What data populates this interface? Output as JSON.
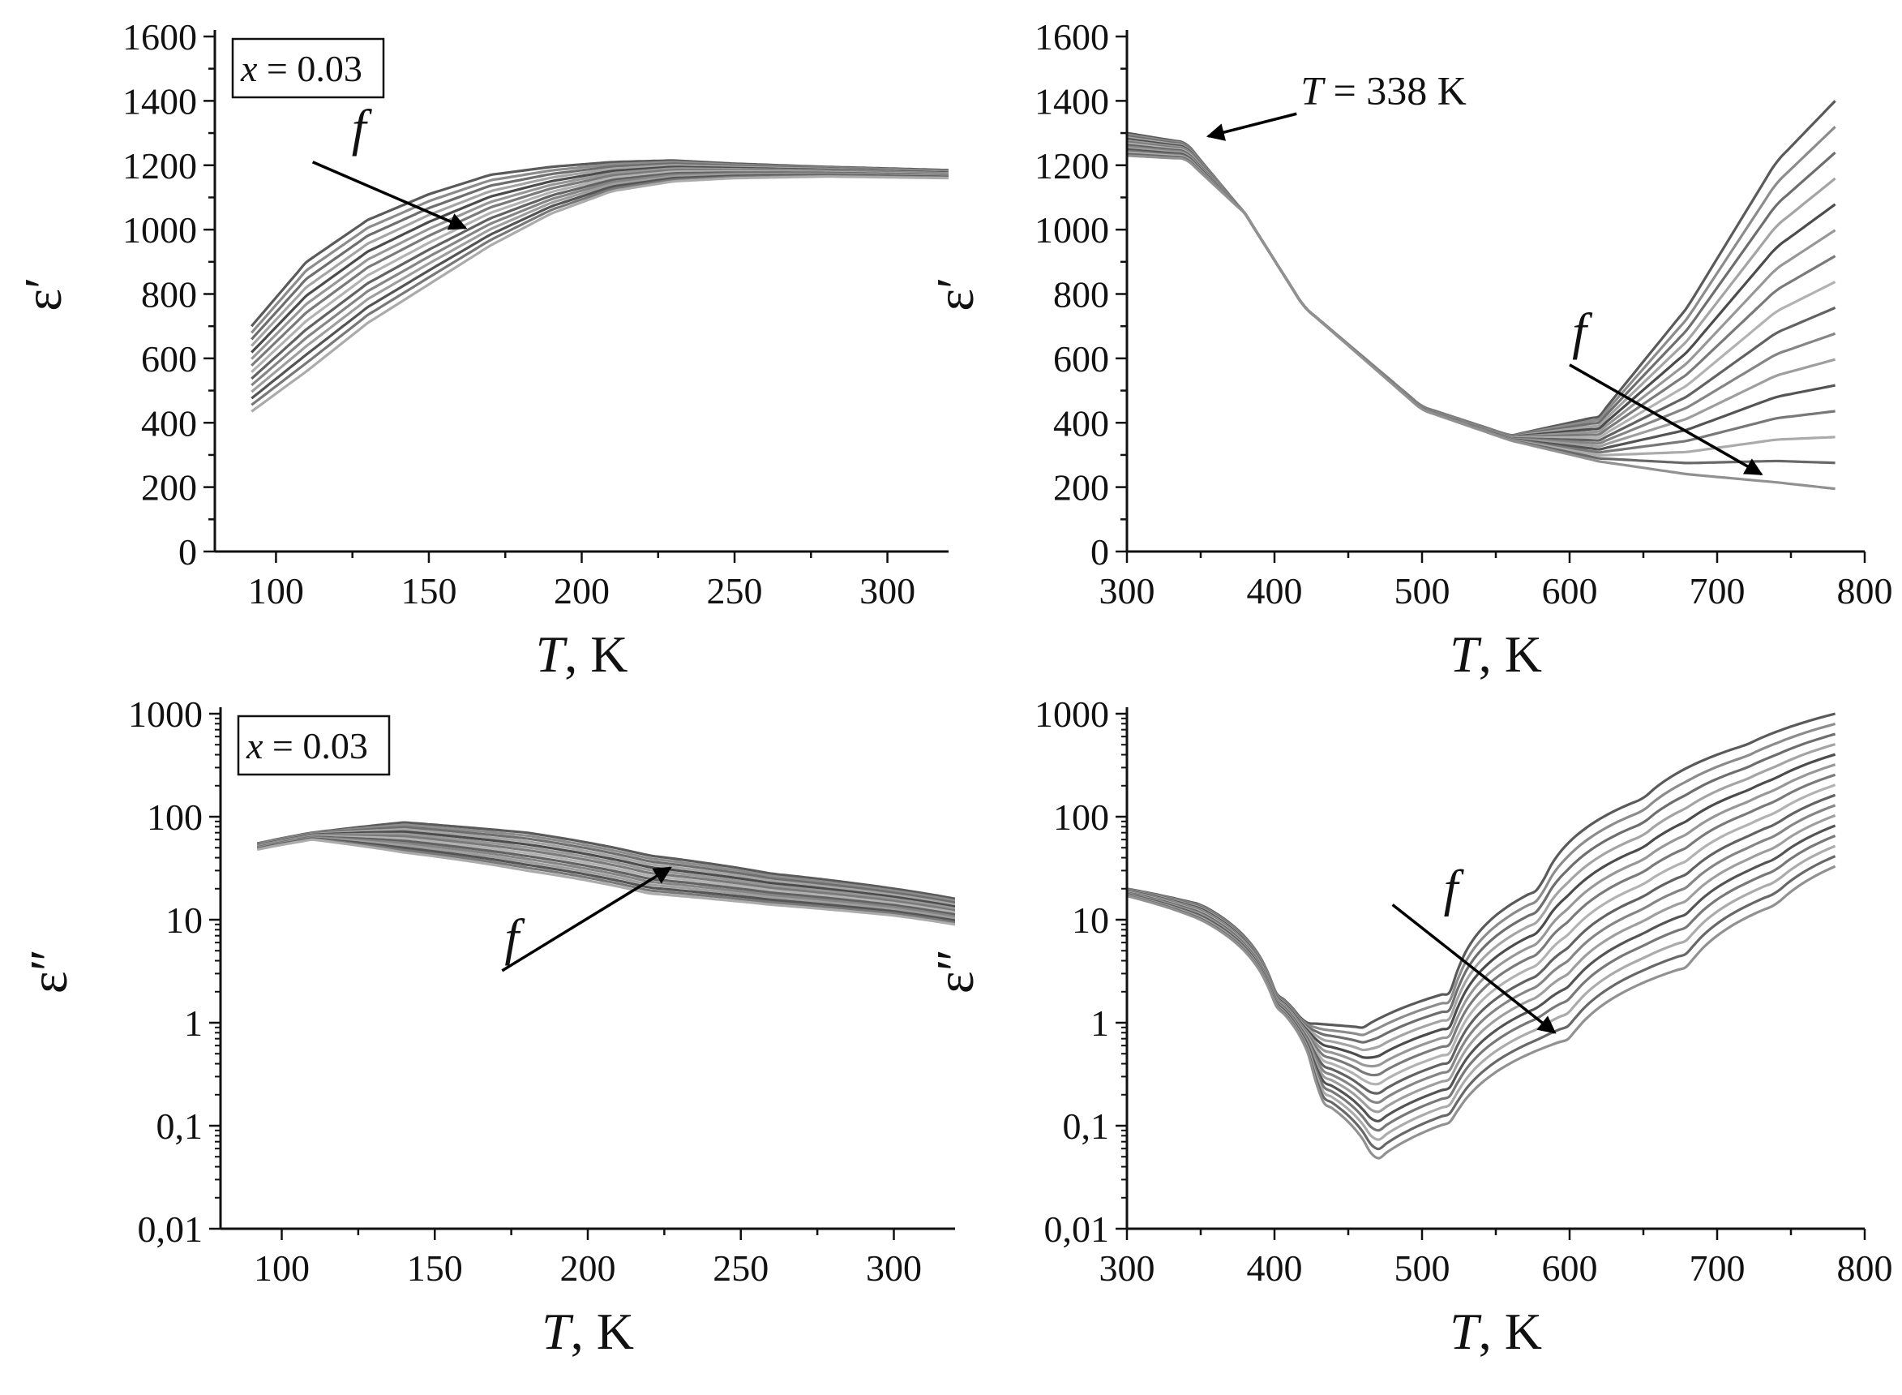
{
  "chart_data": [
    {
      "type": "line",
      "panel": "top-left",
      "title": "",
      "xlabel": "T, K",
      "ylabel": "ε′",
      "xlim": [
        80,
        320
      ],
      "ylim": [
        0,
        1600
      ],
      "xscale": "linear",
      "yscale": "linear",
      "xticks": [
        100,
        150,
        200,
        250,
        300
      ],
      "xtick_labels": [
        "100",
        "150",
        "200",
        "250",
        "300"
      ],
      "yticks": [
        0,
        200,
        400,
        600,
        800,
        1000,
        1200,
        1400,
        1600
      ],
      "ytick_labels": [
        "0",
        "200",
        "400",
        "600",
        "800",
        "1000",
        "1200",
        "1400",
        "1600"
      ],
      "legend_box": {
        "var": "x",
        "rest": " = 0.03",
        "placement": "top-left"
      },
      "annotation": {
        "text": "f",
        "from": [
          112,
          1210
        ],
        "to": [
          162,
          1005
        ]
      },
      "curve_count": 14,
      "series_summary": [
        {
          "name": "lowest frequency",
          "x": [
            92,
            110,
            130,
            150,
            170,
            190,
            210,
            230,
            250,
            280,
            320
          ],
          "y": [
            700,
            900,
            1030,
            1110,
            1170,
            1195,
            1210,
            1215,
            1205,
            1195,
            1185
          ]
        },
        {
          "name": "highest frequency",
          "x": [
            92,
            110,
            130,
            150,
            170,
            190,
            210,
            230,
            250,
            280,
            320
          ],
          "y": [
            435,
            560,
            710,
            830,
            950,
            1050,
            1120,
            1150,
            1160,
            1165,
            1160
          ]
        }
      ]
    },
    {
      "type": "line",
      "panel": "top-right",
      "title": "",
      "xlabel": "T, K",
      "ylabel": "ε′",
      "xlim": [
        300,
        800
      ],
      "ylim": [
        0,
        1600
      ],
      "xscale": "linear",
      "yscale": "linear",
      "xticks": [
        300,
        400,
        500,
        600,
        700,
        800
      ],
      "xtick_labels": [
        "300",
        "400",
        "500",
        "600",
        "700",
        "800"
      ],
      "yticks": [
        0,
        200,
        400,
        600,
        800,
        1000,
        1200,
        1400,
        1600
      ],
      "ytick_labels": [
        "0",
        "200",
        "400",
        "600",
        "800",
        "1000",
        "1200",
        "1400",
        "1600"
      ],
      "annotations": [
        {
          "text_var": "T",
          "text_rest": " = 338 K",
          "from": [
            415,
            1360
          ],
          "to": [
            355,
            1290
          ]
        },
        {
          "text": "f",
          "from": [
            600,
            580
          ],
          "to": [
            730,
            240
          ]
        }
      ],
      "curve_count": 16,
      "series_summary": [
        {
          "name": "lowest frequency",
          "x": [
            300,
            340,
            380,
            420,
            500,
            560,
            620,
            680,
            740,
            780
          ],
          "y": [
            1300,
            1270,
            1050,
            760,
            450,
            360,
            420,
            760,
            1210,
            1400
          ]
        },
        {
          "name": "highest frequency",
          "x": [
            300,
            340,
            380,
            420,
            500,
            560,
            620,
            680,
            740,
            780
          ],
          "y": [
            1230,
            1220,
            1050,
            760,
            440,
            345,
            280,
            240,
            215,
            195
          ]
        }
      ]
    },
    {
      "type": "line",
      "panel": "bottom-left",
      "title": "",
      "xlabel": "T, K",
      "ylabel": "ε″",
      "xlim": [
        80,
        320
      ],
      "ylim": [
        0.01,
        1000
      ],
      "xscale": "linear",
      "yscale": "log",
      "xticks": [
        100,
        150,
        200,
        250,
        300
      ],
      "xtick_labels": [
        "100",
        "150",
        "200",
        "250",
        "300"
      ],
      "yticks": [
        0.01,
        0.1,
        1,
        10,
        100,
        1000
      ],
      "ytick_labels": [
        "0,01",
        "0,1",
        "1",
        "10",
        "100",
        "1000"
      ],
      "legend_box": {
        "var": "x",
        "rest": " = 0.03",
        "placement": "top-left"
      },
      "annotation": {
        "text": "f",
        "from": [
          172,
          3.2
        ],
        "to": [
          227,
          32
        ]
      },
      "curve_count": 14,
      "series_summary": [
        {
          "name": "upper envelope",
          "x": [
            92,
            110,
            140,
            180,
            220,
            260,
            300,
            320
          ],
          "y": [
            55,
            70,
            88,
            70,
            42,
            28,
            20,
            16
          ]
        },
        {
          "name": "lower envelope",
          "x": [
            92,
            110,
            140,
            180,
            220,
            260,
            300,
            320
          ],
          "y": [
            48,
            60,
            45,
            30,
            18,
            14,
            11,
            9
          ]
        }
      ]
    },
    {
      "type": "line",
      "panel": "bottom-right",
      "title": "",
      "xlabel": "T, K",
      "ylabel": "ε″",
      "xlim": [
        300,
        800
      ],
      "ylim": [
        0.01,
        1000
      ],
      "xscale": "linear",
      "yscale": "log",
      "xticks": [
        300,
        400,
        500,
        600,
        700,
        800
      ],
      "xtick_labels": [
        "300",
        "400",
        "500",
        "600",
        "700",
        "800"
      ],
      "yticks": [
        0.01,
        0.1,
        1,
        10,
        100,
        1000
      ],
      "ytick_labels": [
        "0,01",
        "0,1",
        "1",
        "10",
        "100",
        "1000"
      ],
      "annotation": {
        "text": "f",
        "from": [
          480,
          14
        ],
        "to": [
          590,
          0.8
        ]
      },
      "curve_count": 16,
      "series_summary": [
        {
          "name": "lowest frequency",
          "x": [
            300,
            350,
            400,
            420,
            460,
            520,
            580,
            650,
            720,
            780
          ],
          "y": [
            20,
            14,
            2,
            1.0,
            0.9,
            2,
            20,
            150,
            500,
            1000
          ]
        },
        {
          "name": "highest frequency",
          "x": [
            300,
            350,
            400,
            430,
            468,
            520,
            600,
            680,
            740,
            780
          ],
          "y": [
            17,
            10,
            1.5,
            0.18,
            0.045,
            0.11,
            0.7,
            3.5,
            14,
            33
          ]
        }
      ]
    }
  ]
}
